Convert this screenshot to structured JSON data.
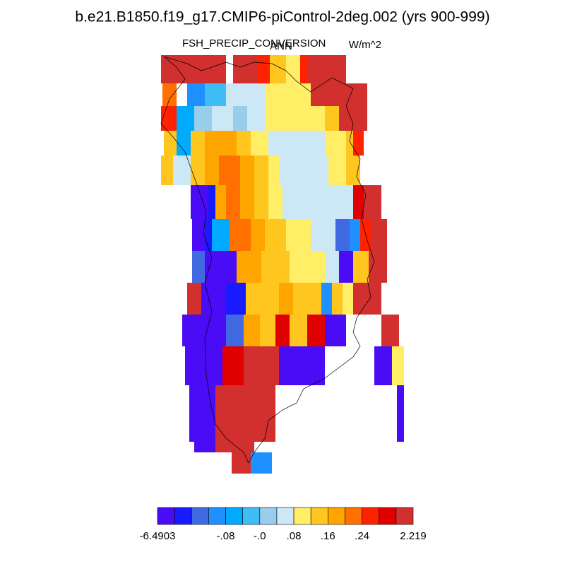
{
  "header": {
    "title": "b.e21.B1850.f19_g17.CMIP6-piControl-2deg.002 (yrs 900-999)",
    "left_string": "FSH_PRECIP_CONVERSION",
    "center_string": "ANN",
    "right_string": "W/m^2"
  },
  "colorbar": {
    "colors": [
      "#4a0cf5",
      "#1a1aff",
      "#4169e1",
      "#1e90ff",
      "#00aaff",
      "#3fbdf5",
      "#99cdec",
      "#cce8f6",
      "#ffee66",
      "#ffc61f",
      "#ffa500",
      "#ff7000",
      "#ff2200",
      "#e00000",
      "#d22f2f"
    ],
    "labels": [
      "-6.4903",
      null,
      null,
      null,
      "-.08",
      null,
      "-.0",
      null,
      ".08",
      null,
      ".16",
      null,
      ".24",
      null,
      null,
      "2.219"
    ]
  }
}
